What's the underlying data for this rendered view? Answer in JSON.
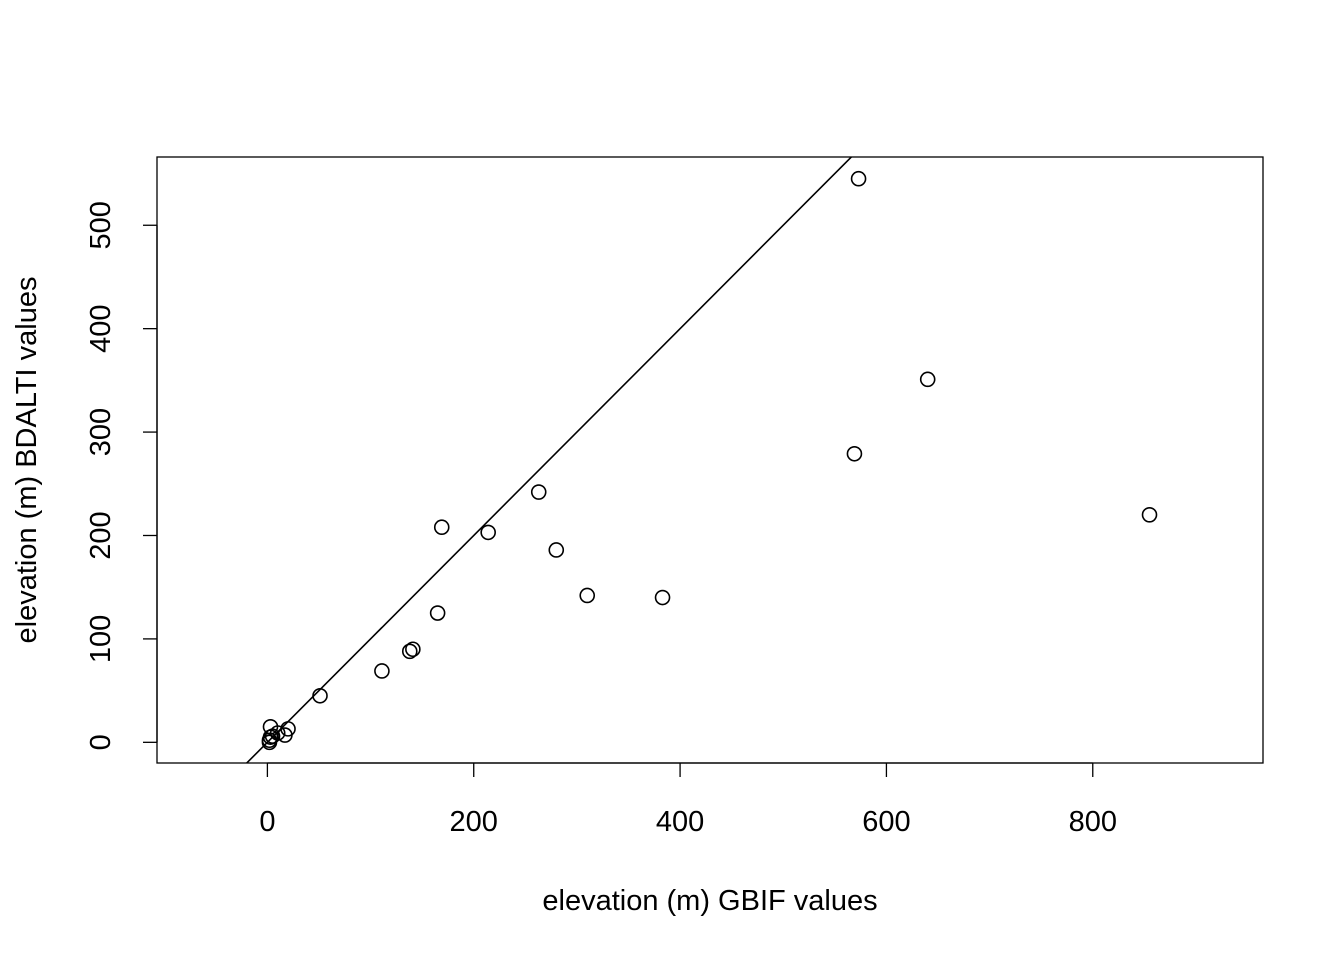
{
  "chart_data": {
    "type": "scatter",
    "title": "",
    "xlabel": "elevation (m) GBIF values",
    "ylabel": "elevation (m) BDALTI values",
    "xlim": [
      -107,
      965
    ],
    "ylim": [
      -20,
      566
    ],
    "x_ticks": [
      0,
      200,
      400,
      600,
      800
    ],
    "y_ticks": [
      0,
      100,
      200,
      300,
      400,
      500
    ],
    "grid": false,
    "legend": "none",
    "marker": "open-circle",
    "reference_line": {
      "intercept": 0,
      "slope": 1
    },
    "points": [
      {
        "x": 2,
        "y": 0
      },
      {
        "x": 2,
        "y": 2
      },
      {
        "x": 3,
        "y": 5
      },
      {
        "x": 5,
        "y": 6
      },
      {
        "x": 3,
        "y": 15
      },
      {
        "x": 10,
        "y": 9
      },
      {
        "x": 17,
        "y": 7
      },
      {
        "x": 20,
        "y": 13
      },
      {
        "x": 51,
        "y": 45
      },
      {
        "x": 111,
        "y": 69
      },
      {
        "x": 138,
        "y": 88
      },
      {
        "x": 141,
        "y": 90
      },
      {
        "x": 165,
        "y": 125
      },
      {
        "x": 169,
        "y": 208
      },
      {
        "x": 214,
        "y": 203
      },
      {
        "x": 263,
        "y": 242
      },
      {
        "x": 280,
        "y": 186
      },
      {
        "x": 310,
        "y": 142
      },
      {
        "x": 383,
        "y": 140
      },
      {
        "x": 569,
        "y": 279
      },
      {
        "x": 573,
        "y": 545
      },
      {
        "x": 640,
        "y": 351
      },
      {
        "x": 855,
        "y": 220
      }
    ]
  }
}
